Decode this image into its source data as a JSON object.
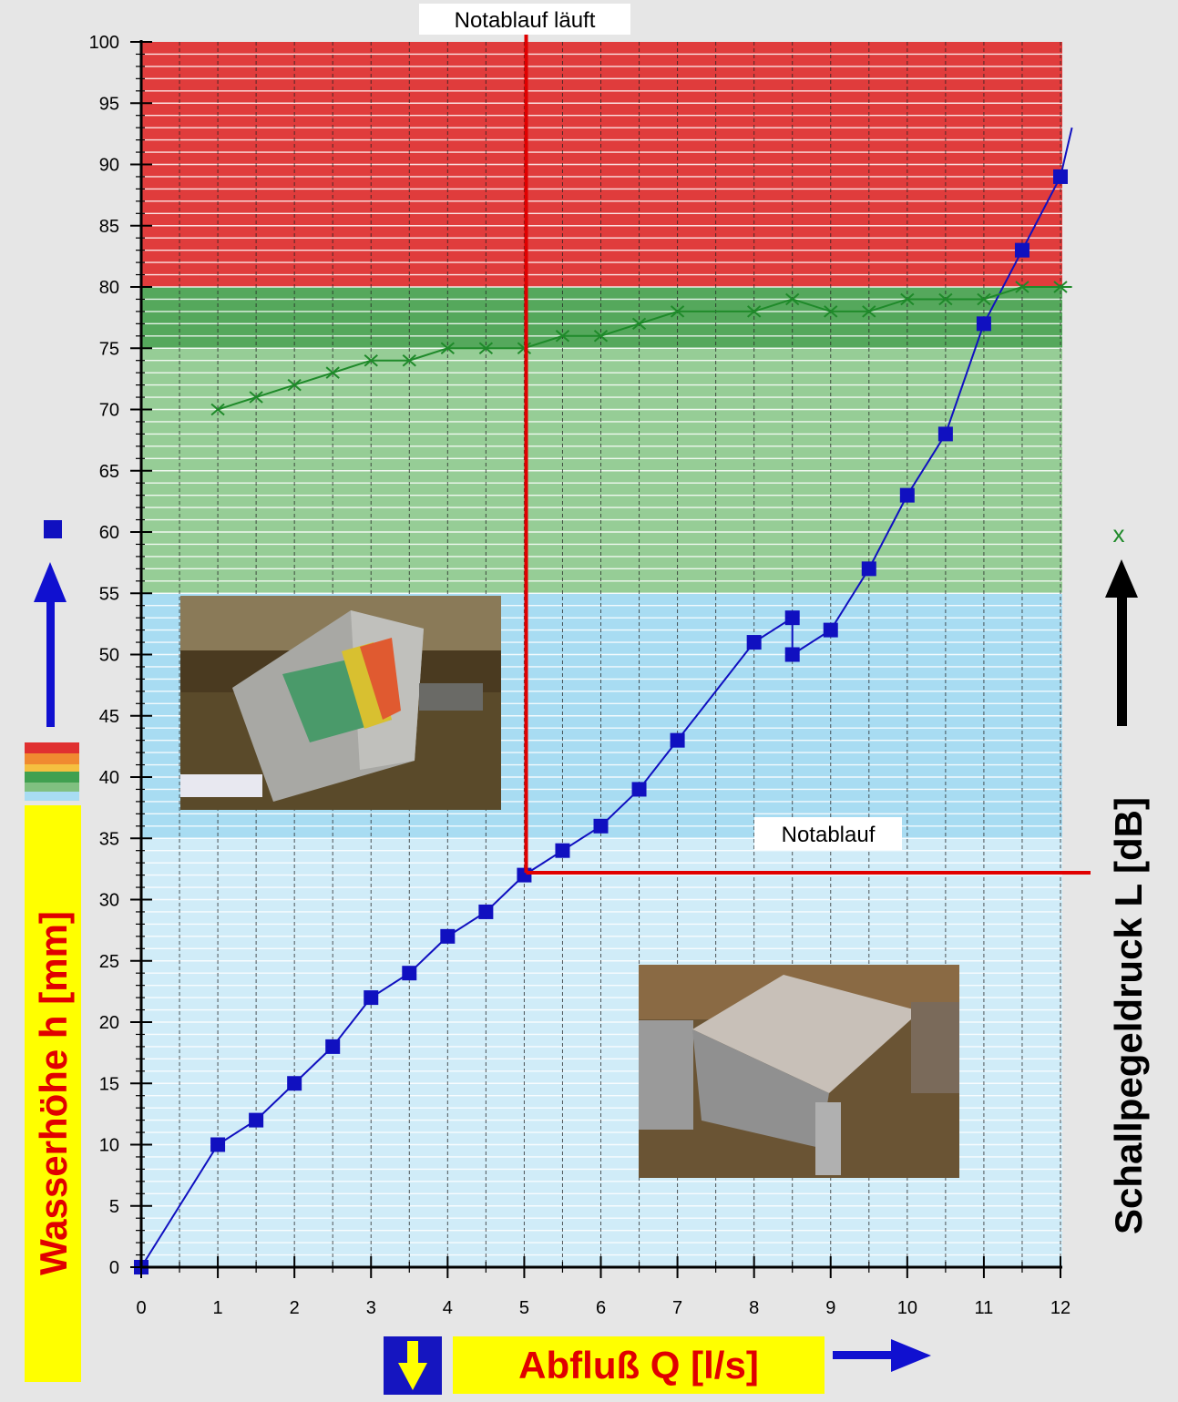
{
  "chart_data": {
    "type": "line",
    "xlabel": "Abfluß Q [l/s]",
    "ylabel": "Wasserhöhe h [mm]",
    "y2label": "Schallpegeldruck L [dB]",
    "xlim": [
      0,
      12
    ],
    "ylim": [
      0,
      100
    ],
    "x_ticks": [
      0,
      1,
      2,
      3,
      4,
      5,
      6,
      7,
      8,
      9,
      10,
      11,
      12
    ],
    "y_ticks": [
      0,
      5,
      10,
      15,
      20,
      25,
      30,
      35,
      40,
      45,
      50,
      55,
      60,
      65,
      70,
      75,
      80,
      85,
      90,
      95,
      100
    ],
    "grid": true,
    "bands": [
      {
        "from": 80,
        "to": 100,
        "color": "#e03c3c"
      },
      {
        "from": 75,
        "to": 80,
        "color": "#55a85c"
      },
      {
        "from": 55,
        "to": 75,
        "color": "#96cd96"
      },
      {
        "from": 35,
        "to": 55,
        "color": "#a8dcf2"
      },
      {
        "from": 0,
        "to": 35,
        "color": "#d0ecf8"
      }
    ],
    "series": [
      {
        "marker": "square",
        "color": "#1010c0",
        "x": [
          0,
          1,
          1.5,
          2,
          2.5,
          3,
          3.5,
          4,
          4.5,
          5,
          5.5,
          6,
          6.5,
          7,
          8,
          8.5,
          8.5,
          9,
          9.5,
          10,
          10.5,
          11,
          11.5,
          12
        ],
        "y": [
          0,
          10,
          12,
          15,
          18,
          22,
          24,
          27,
          29,
          32,
          34,
          36,
          39,
          43,
          51,
          53,
          50,
          52,
          57,
          63,
          68,
          77,
          83,
          89
        ],
        "extends_to": {
          "x": 12.15,
          "y": 93
        }
      },
      {
        "marker": "x",
        "color": "#1f8a2a",
        "x": [
          1,
          1.5,
          2,
          2.5,
          3,
          3.5,
          4,
          4.5,
          5,
          5.5,
          6,
          6.5,
          7,
          8,
          8.5,
          9,
          9.5,
          10,
          10.5,
          11,
          11.5,
          12
        ],
        "y": [
          70,
          71,
          72,
          73,
          74,
          74,
          75,
          75,
          75,
          76,
          76,
          77,
          78,
          78,
          79,
          78,
          78,
          79,
          79,
          79,
          80,
          80
        ],
        "extends_to": {
          "x": 12.15,
          "y": 80
        }
      }
    ],
    "annotations": {
      "top": "Notablauf läuft",
      "mid": "Notablauf",
      "marker_x": 5,
      "marker_y": 32.5
    },
    "legend_markers": {
      "left": "■",
      "right": "x"
    },
    "colors": {
      "yellow": "#ffff00",
      "red_text": "#e00000",
      "blue_arrow": "#1010d0",
      "redline": "#e00000"
    }
  }
}
